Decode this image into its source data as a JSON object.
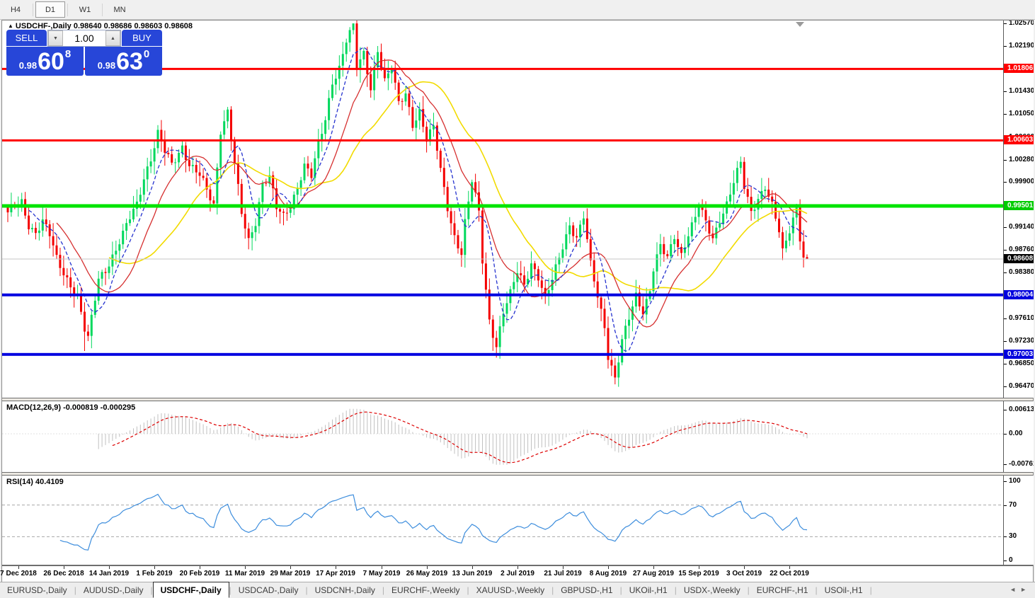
{
  "toolbar": {
    "timeframes": [
      {
        "label": "H4",
        "active": false
      },
      {
        "label": "D1",
        "active": true
      },
      {
        "label": "W1",
        "active": false
      },
      {
        "label": "MN",
        "active": false
      }
    ]
  },
  "icons": {
    "title_collapse": "▲",
    "spinner_down": "▼",
    "spinner_up": "▲",
    "tabs_scroll_left": "◄",
    "tabs_scroll_right": "►",
    "shift_marker": "▼"
  },
  "chart": {
    "title_symbol": "USDCHF-,Daily",
    "title_values": "0.98640 0.98686 0.98603 0.98608",
    "trade": {
      "sell_label": "SELL",
      "buy_label": "BUY",
      "volume": "1.00",
      "sell_small": "0.98",
      "sell_big": "60",
      "sell_sup": "8",
      "buy_small": "0.98",
      "buy_big": "63",
      "buy_sup": "0"
    },
    "axis_ticks": [
      {
        "value": 1.0257,
        "label": "1.02570"
      },
      {
        "value": 1.0219,
        "label": "1.02190"
      },
      {
        "value": 1.0181,
        "label": "1.01810"
      },
      {
        "value": 1.0143,
        "label": "1.01430"
      },
      {
        "value": 1.0105,
        "label": "1.01050"
      },
      {
        "value": 1.0066,
        "label": "1.00660"
      },
      {
        "value": 1.0028,
        "label": "1.00280"
      },
      {
        "value": 0.999,
        "label": "0.99900"
      },
      {
        "value": 0.9952,
        "label": "0.99520"
      },
      {
        "value": 0.9914,
        "label": "0.99140"
      },
      {
        "value": 0.9876,
        "label": "0.98760"
      },
      {
        "value": 0.9838,
        "label": "0.98380"
      },
      {
        "value": 0.98,
        "label": "0.98000"
      },
      {
        "value": 0.9761,
        "label": "0.97610"
      },
      {
        "value": 0.9723,
        "label": "0.97230"
      },
      {
        "value": 0.9685,
        "label": "0.96850"
      },
      {
        "value": 0.9647,
        "label": "0.96470"
      }
    ],
    "levels": [
      {
        "price": 1.01806,
        "label": "1.01806",
        "line_color": "#ff0000",
        "badge_bg": "#ff0000",
        "thickness": 3
      },
      {
        "price": 1.00603,
        "label": "1.00603",
        "line_color": "#ff0000",
        "badge_bg": "#ff0000",
        "thickness": 3
      },
      {
        "price": 0.99501,
        "label": "0.99501",
        "line_color": "#00e400",
        "badge_bg": "#00cc00",
        "thickness": 5
      },
      {
        "price": 0.98004,
        "label": "0.98004",
        "line_color": "#0000e0",
        "badge_bg": "#0000dd",
        "thickness": 4
      },
      {
        "price": 0.97003,
        "label": "0.97003",
        "line_color": "#0000e0",
        "badge_bg": "#0000dd",
        "thickness": 4
      }
    ],
    "current_price": {
      "price": 0.98608,
      "label": "0.98608",
      "line_color": "#c4c4c4",
      "badge_bg": "#000000"
    },
    "date_labels": [
      "7 Dec 2018",
      "26 Dec 2018",
      "14 Jan 2019",
      "1 Feb 2019",
      "20 Feb 2019",
      "11 Mar 2019",
      "29 Mar 2019",
      "17 Apr 2019",
      "7 May 2019",
      "26 May 2019",
      "13 Jun 2019",
      "2 Jul 2019",
      "21 Jul 2019",
      "8 Aug 2019",
      "27 Aug 2019",
      "15 Sep 2019",
      "3 Oct 2019",
      "22 Oct 2019"
    ],
    "colors": {
      "bull": "#00d85c",
      "bear": "#f40000",
      "ma_fast_blue": "#2633cf",
      "ma_mid_red": "#d63030",
      "ma_slow_yellow": "#f2db00"
    },
    "num_candles": 230,
    "close_path": [
      [
        0,
        0.9935
      ],
      [
        2,
        0.995
      ],
      [
        4,
        0.9958
      ],
      [
        6,
        0.992
      ],
      [
        8,
        0.9905
      ],
      [
        10,
        0.9922
      ],
      [
        12,
        0.99
      ],
      [
        14,
        0.9862
      ],
      [
        16,
        0.984
      ],
      [
        18,
        0.9818
      ],
      [
        20,
        0.9795
      ],
      [
        22,
        0.974
      ],
      [
        23,
        0.9725
      ],
      [
        24,
        0.976
      ],
      [
        26,
        0.983
      ],
      [
        28,
        0.9845
      ],
      [
        31,
        0.9875
      ],
      [
        33,
        0.99
      ],
      [
        35,
        0.993
      ],
      [
        37,
        0.9955
      ],
      [
        39,
        1.0
      ],
      [
        41,
        1.003
      ],
      [
        43,
        1.007
      ],
      [
        45,
        1.004
      ],
      [
        47,
        1.002
      ],
      [
        50,
        1.0052
      ],
      [
        52,
        1.002
      ],
      [
        55,
        1.0
      ],
      [
        57,
        0.9975
      ],
      [
        59,
        0.9952
      ],
      [
        61,
        1.008
      ],
      [
        63,
        1.011
      ],
      [
        65,
        1.002
      ],
      [
        67,
        0.9935
      ],
      [
        69,
        0.989
      ],
      [
        71,
        0.9925
      ],
      [
        73,
        0.999
      ],
      [
        75,
        1.0
      ],
      [
        77,
        0.9945
      ],
      [
        79,
        0.993
      ],
      [
        81,
        0.995
      ],
      [
        83,
        0.9985
      ],
      [
        85,
        1.002
      ],
      [
        87,
        1.0
      ],
      [
        89,
        1.005
      ],
      [
        91,
        1.0095
      ],
      [
        93,
        1.016
      ],
      [
        95,
        1.0185
      ],
      [
        97,
        1.023
      ],
      [
        99,
        1.025
      ],
      [
        100,
        1.018
      ],
      [
        102,
        1.0205
      ],
      [
        104,
        1.015
      ],
      [
        106,
        1.0215
      ],
      [
        108,
        1.016
      ],
      [
        110,
        1.018
      ],
      [
        112,
        1.012
      ],
      [
        114,
        1.014
      ],
      [
        116,
        1.009
      ],
      [
        118,
        1.011
      ],
      [
        120,
        1.006
      ],
      [
        122,
        1.008
      ],
      [
        124,
        1.001
      ],
      [
        126,
        0.995
      ],
      [
        128,
        0.99
      ],
      [
        130,
        0.987
      ],
      [
        131,
        0.992
      ],
      [
        133,
        0.999
      ],
      [
        135,
        0.994
      ],
      [
        136,
        0.986
      ],
      [
        138,
        0.976
      ],
      [
        140,
        0.9715
      ],
      [
        142,
        0.977
      ],
      [
        144,
        0.98
      ],
      [
        146,
        0.984
      ],
      [
        148,
        0.982
      ],
      [
        150,
        0.9855
      ],
      [
        152,
        0.983
      ],
      [
        154,
        0.979
      ],
      [
        156,
        0.9825
      ],
      [
        158,
        0.9865
      ],
      [
        159,
        0.9885
      ],
      [
        161,
        0.992
      ],
      [
        163,
        0.9895
      ],
      [
        165,
        0.993
      ],
      [
        167,
        0.985
      ],
      [
        169,
        0.98
      ],
      [
        171,
        0.975
      ],
      [
        172,
        0.97
      ],
      [
        174,
        0.966
      ],
      [
        176,
        0.972
      ],
      [
        178,
        0.976
      ],
      [
        180,
        0.98
      ],
      [
        182,
        0.9775
      ],
      [
        184,
        0.981
      ],
      [
        185,
        0.9845
      ],
      [
        187,
        0.988
      ],
      [
        189,
        0.986
      ],
      [
        191,
        0.99
      ],
      [
        193,
        0.987
      ],
      [
        195,
        0.9905
      ],
      [
        197,
        0.993
      ],
      [
        198,
        0.995
      ],
      [
        200,
        0.992
      ],
      [
        202,
        0.9895
      ],
      [
        204,
        0.993
      ],
      [
        206,
        0.9955
      ],
      [
        208,
        0.999
      ],
      [
        210,
        1.002
      ],
      [
        211,
        0.998
      ],
      [
        213,
        0.994
      ],
      [
        215,
        0.9965
      ],
      [
        217,
        0.9985
      ],
      [
        219,
        0.995
      ],
      [
        221,
        0.9905
      ],
      [
        222,
        0.987
      ],
      [
        224,
        0.991
      ],
      [
        226,
        0.995
      ],
      [
        227,
        0.99
      ],
      [
        228,
        0.9865
      ],
      [
        229,
        0.9861
      ]
    ],
    "wick_overrides": {
      "22": {
        "low": 0.9706
      },
      "99": {
        "high": 1.0257
      },
      "140": {
        "low": 0.9695
      },
      "174": {
        "low": 0.965
      }
    },
    "last_candle": {
      "open": 0.9864,
      "high": 0.98686,
      "low": 0.98603,
      "close": 0.98608
    }
  },
  "macd": {
    "label": "MACD(12,26,9) -0.000819 -0.000295",
    "params": {
      "fast": 12,
      "slow": 26,
      "signal": 9
    },
    "hist_color": "#c0c0c0",
    "signal_color": "#dd0000",
    "axis": [
      {
        "value": 0.00613,
        "label": "0.00613"
      },
      {
        "value": 0.0,
        "label": "0.00"
      },
      {
        "value": -0.007612,
        "label": "-0.007612"
      }
    ]
  },
  "rsi": {
    "label": "RSI(14) 40.4109",
    "period": 14,
    "line_color": "#3e8edd",
    "axis": [
      {
        "value": 100,
        "label": "100"
      },
      {
        "value": 70,
        "label": "70"
      },
      {
        "value": 30,
        "label": "30"
      },
      {
        "value": 0,
        "label": "0"
      }
    ],
    "dashed_levels": [
      70,
      30
    ]
  },
  "tabs": {
    "items": [
      {
        "label": "EURUSD-,Daily",
        "active": false
      },
      {
        "label": "AUDUSD-,Daily",
        "active": false
      },
      {
        "label": "USDCHF-,Daily",
        "active": true
      },
      {
        "label": "USDCAD-,Daily",
        "active": false
      },
      {
        "label": "USDCNH-,Daily",
        "active": false
      },
      {
        "label": "EURCHF-,Weekly",
        "active": false
      },
      {
        "label": "XAUUSD-,Weekly",
        "active": false
      },
      {
        "label": "GBPUSD-,H1",
        "active": false
      },
      {
        "label": "UKOil-,H1",
        "active": false
      },
      {
        "label": "USDX-,Weekly",
        "active": false
      },
      {
        "label": "EURCHF-,H1",
        "active": false
      },
      {
        "label": "USOil-,H1",
        "active": false
      }
    ]
  }
}
